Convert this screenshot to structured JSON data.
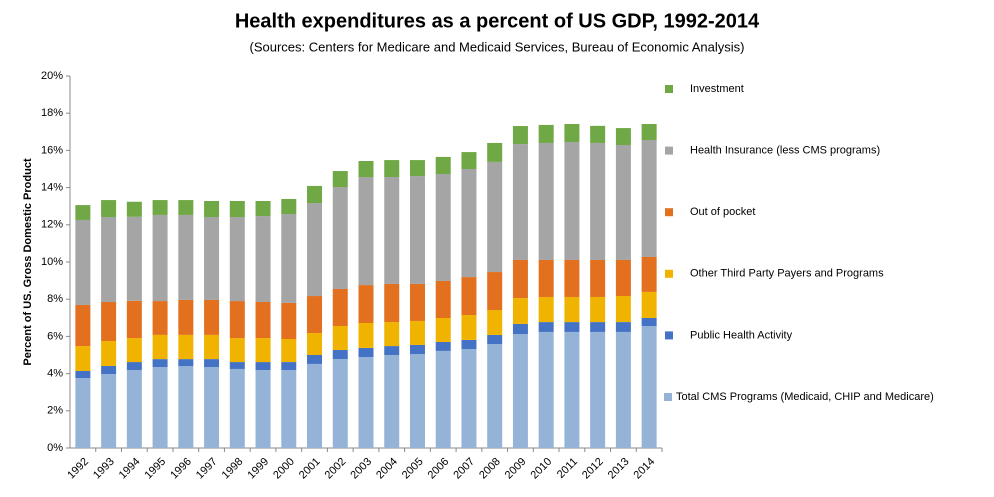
{
  "chart_data": {
    "type": "stacked-bar",
    "title": "Health expenditures as a percent of US GDP, 1992-2014",
    "subtitle": "(Sources: Centers for Medicare and Medicaid Services, Bureau of Economic Analysis)",
    "y_axis_label": "Percent of US. Gross Domestic Product",
    "categories": [
      "1992",
      "1993",
      "1994",
      "1995",
      "1996",
      "1997",
      "1998",
      "1999",
      "2000",
      "2001",
      "2002",
      "2003",
      "2004",
      "2005",
      "2006",
      "2007",
      "2008",
      "2009",
      "2010",
      "2011",
      "2012",
      "2013",
      "2014"
    ],
    "series": [
      {
        "name": "Total CMS Programs (Medicaid, CHIP and Medicare)",
        "color": "#95b3d7",
        "values": [
          3.76,
          3.98,
          4.19,
          4.35,
          4.4,
          4.35,
          4.25,
          4.19,
          4.19,
          4.52,
          4.78,
          4.89,
          5.0,
          5.05,
          5.22,
          5.32,
          5.59,
          6.13,
          6.24,
          6.24,
          6.24,
          6.24,
          6.56
        ]
      },
      {
        "name": "Public Health Activity",
        "color": "#4472c4",
        "values": [
          0.38,
          0.43,
          0.43,
          0.43,
          0.38,
          0.43,
          0.37,
          0.43,
          0.43,
          0.48,
          0.49,
          0.49,
          0.48,
          0.49,
          0.48,
          0.49,
          0.49,
          0.54,
          0.53,
          0.53,
          0.53,
          0.53,
          0.43
        ]
      },
      {
        "name": "Other Third Party Payers and Programs",
        "color": "#f0b400",
        "values": [
          1.34,
          1.34,
          1.29,
          1.3,
          1.3,
          1.3,
          1.29,
          1.29,
          1.24,
          1.18,
          1.29,
          1.34,
          1.29,
          1.29,
          1.29,
          1.34,
          1.34,
          1.39,
          1.35,
          1.35,
          1.35,
          1.4,
          1.4
        ]
      },
      {
        "name": "Out of pocket",
        "color": "#e2701f",
        "values": [
          2.21,
          2.1,
          2.0,
          1.82,
          1.88,
          1.88,
          1.99,
          1.94,
          1.94,
          1.99,
          1.99,
          2.04,
          2.05,
          1.99,
          1.99,
          2.04,
          2.04,
          2.05,
          1.99,
          1.99,
          1.99,
          1.94,
          1.88
        ]
      },
      {
        "name": "Health Insurance (less CMS programs)",
        "color": "#a5a5a5",
        "values": [
          4.57,
          4.57,
          4.52,
          4.63,
          4.57,
          4.46,
          4.52,
          4.62,
          4.78,
          5.0,
          5.48,
          5.81,
          5.75,
          5.8,
          5.75,
          5.81,
          5.92,
          6.23,
          6.29,
          6.34,
          6.29,
          6.18,
          6.29
        ]
      },
      {
        "name": "Investment",
        "color": "#70a845",
        "values": [
          0.8,
          0.91,
          0.81,
          0.8,
          0.8,
          0.86,
          0.86,
          0.81,
          0.81,
          0.92,
          0.86,
          0.86,
          0.91,
          0.86,
          0.92,
          0.91,
          1.02,
          0.97,
          0.97,
          0.97,
          0.92,
          0.91,
          0.86
        ]
      }
    ],
    "ylim": [
      0,
      20
    ],
    "yticks": [
      {
        "value": 0,
        "label": "0%"
      },
      {
        "value": 2,
        "label": "2%"
      },
      {
        "value": 4,
        "label": "4%"
      },
      {
        "value": 6,
        "label": "6%"
      },
      {
        "value": 8,
        "label": "8%"
      },
      {
        "value": 10,
        "label": "10%"
      },
      {
        "value": 12,
        "label": "12%"
      },
      {
        "value": 14,
        "label": "14%"
      },
      {
        "value": 16,
        "label": "16%"
      },
      {
        "value": 18,
        "label": "18%"
      },
      {
        "value": 20,
        "label": "20%"
      }
    ],
    "grid": false,
    "legend": "right"
  }
}
